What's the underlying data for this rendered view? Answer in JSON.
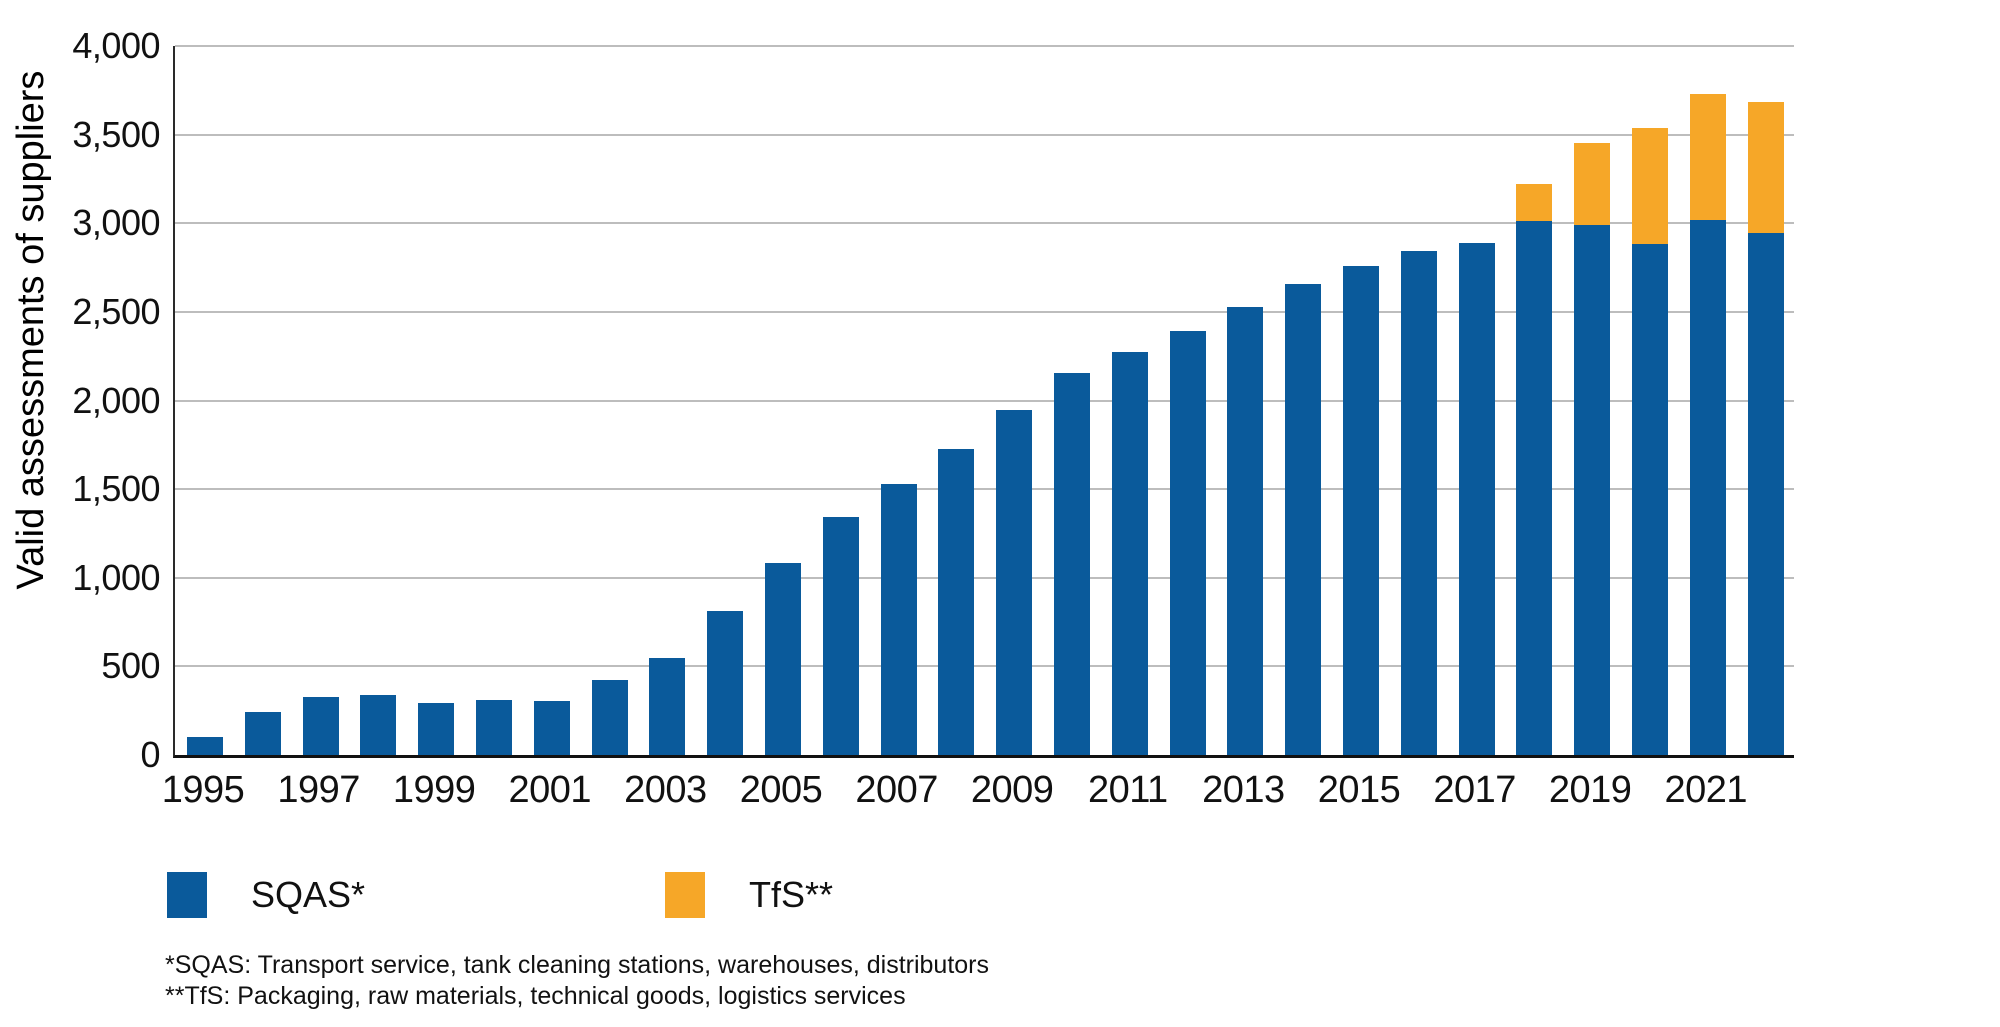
{
  "chart_data": {
    "type": "bar",
    "stacked": true,
    "title": "",
    "xlabel": "",
    "ylabel": "Valid assessments of suppliers",
    "ylim": [
      0,
      4000
    ],
    "ytick_step": 500,
    "grid": "horizontal",
    "legend_position": "bottom-left",
    "categories": [
      "1995",
      "1996",
      "1997",
      "1998",
      "1999",
      "2000",
      "2001",
      "2002",
      "2003",
      "2004",
      "2005",
      "2006",
      "2007",
      "2008",
      "2009",
      "2010",
      "2011",
      "2012",
      "2013",
      "2014",
      "2015",
      "2016",
      "2017",
      "2018",
      "2019",
      "2020",
      "2021",
      "2022"
    ],
    "x_tick_labels": [
      "1995",
      "1997",
      "1999",
      "2001",
      "2003",
      "2005",
      "2007",
      "2009",
      "2011",
      "2013",
      "2015",
      "2017",
      "2019",
      "2021"
    ],
    "y_tick_labels": [
      "0",
      "500",
      "1,000",
      "1,500",
      "2,000",
      "2,500",
      "3,000",
      "3,500",
      "4,000"
    ],
    "series": [
      {
        "name": "SQAS*",
        "color": "#0A5A9B",
        "values": [
          100,
          240,
          330,
          340,
          295,
          310,
          305,
          425,
          545,
          815,
          1085,
          1345,
          1530,
          1725,
          1945,
          2155,
          2275,
          2390,
          2530,
          2660,
          2760,
          2845,
          2890,
          3010,
          2990,
          2885,
          3020,
          2945
        ]
      },
      {
        "name": "TfS**",
        "color": "#F6A728",
        "values": [
          0,
          0,
          0,
          0,
          0,
          0,
          0,
          0,
          0,
          0,
          0,
          0,
          0,
          0,
          0,
          0,
          0,
          0,
          0,
          0,
          0,
          0,
          0,
          210,
          465,
          655,
          710,
          740
        ]
      }
    ],
    "footnotes": [
      "*SQAS: Transport service, tank cleaning stations, warehouses, distributors",
      "**TfS: Packaging, raw materials, technical goods, logistics services"
    ],
    "gridline_color": "#bdbdbd",
    "axis_color": "#111111"
  }
}
